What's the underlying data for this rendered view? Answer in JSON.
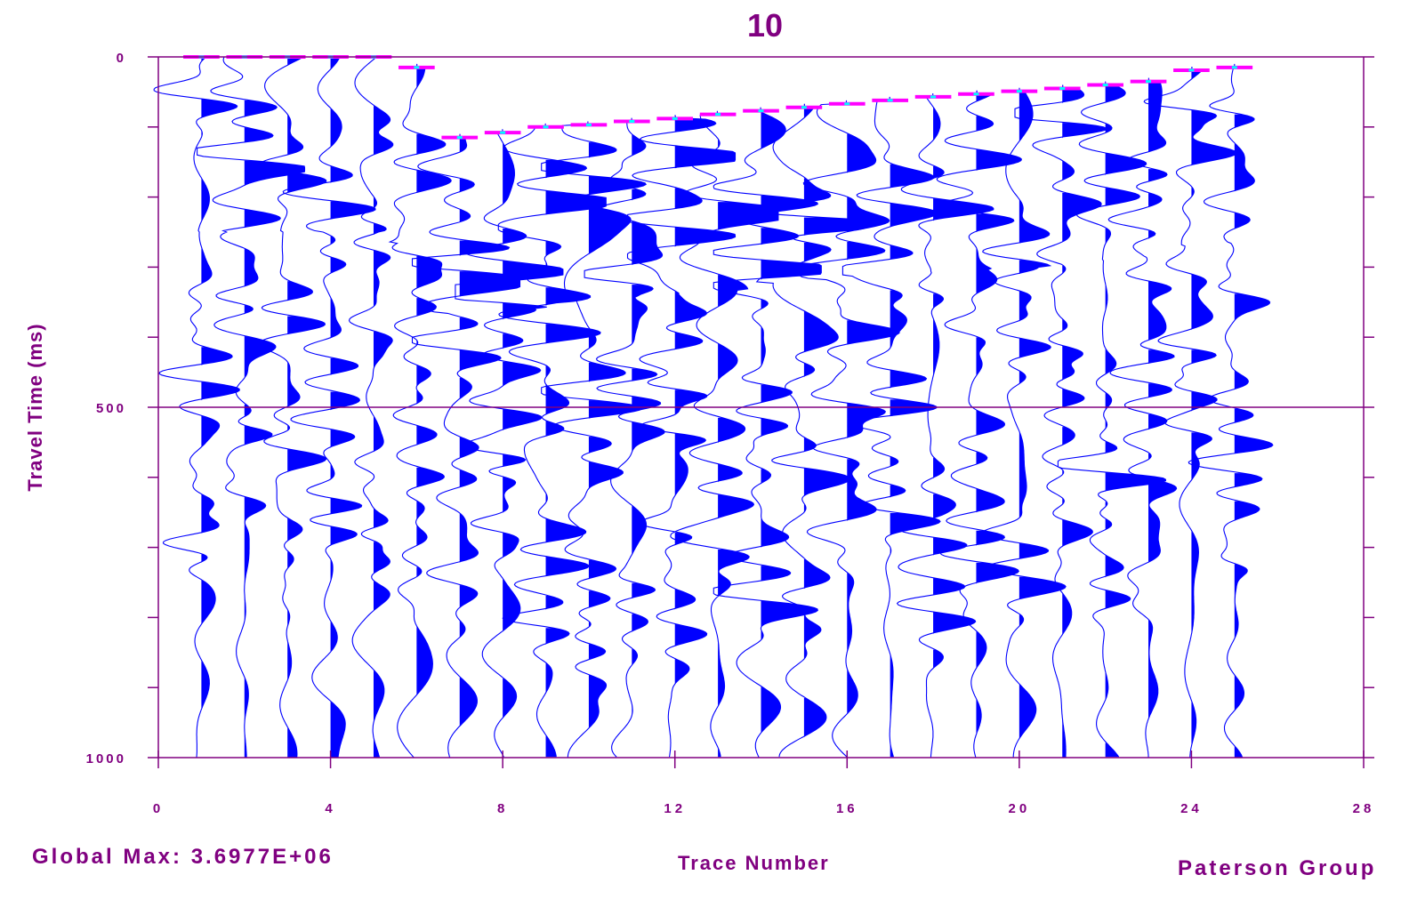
{
  "chart_data": {
    "type": "seismic-wiggle",
    "title": "10",
    "xlabel": "Trace Number",
    "ylabel": "Travel Time (ms)",
    "xlim": [
      0,
      28
    ],
    "ylim": [
      0,
      1000
    ],
    "y_inverted": true,
    "x_ticks": [
      0,
      4,
      8,
      12,
      16,
      20,
      24,
      28
    ],
    "x_tick_labels": [
      "0",
      "4",
      "8",
      "12",
      "16",
      "20",
      "24",
      "28"
    ],
    "y_ticks": [
      0,
      500,
      1000
    ],
    "y_tick_labels": [
      "0",
      "500",
      "1000"
    ],
    "y_minor_ticks": [
      100,
      200,
      300,
      400,
      600,
      700,
      800,
      900
    ],
    "traces": [
      1,
      2,
      3,
      4,
      5,
      6,
      7,
      8,
      9,
      10,
      11,
      12,
      13,
      14,
      15,
      16,
      17,
      18,
      19,
      20,
      21,
      22,
      23,
      24,
      25
    ],
    "trace_count": 25,
    "fill": "positive-amplitude",
    "first_break_picks_ms": [
      0,
      0,
      0,
      0,
      0,
      15,
      115,
      108,
      100,
      97,
      92,
      88,
      82,
      77,
      72,
      67,
      62,
      57,
      53,
      49,
      45,
      40,
      35,
      19,
      15
    ],
    "global_max": "3.6977E+06",
    "annotation": "Global Max:  3.6977E+06",
    "credit": "Paterson Group",
    "colors": {
      "axis": "#800080",
      "trace": "#0000ff",
      "pick": "#ff00ff",
      "pick_secondary": "#00ffff"
    }
  }
}
